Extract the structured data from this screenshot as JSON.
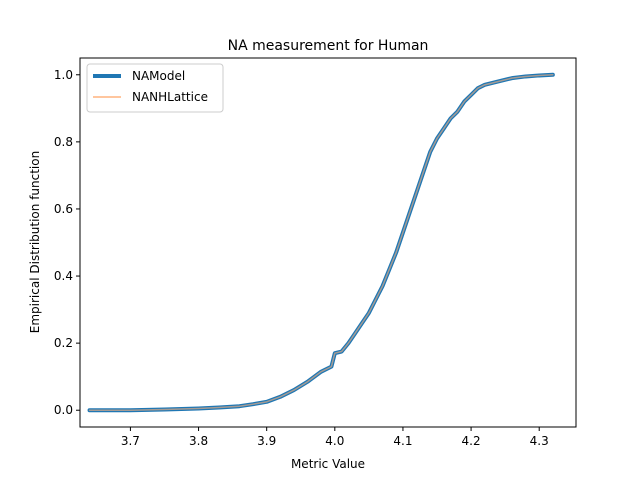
{
  "chart_data": {
    "type": "line",
    "title": "NA measurement for Human",
    "xlabel": "Metric Value",
    "ylabel": "Empirical Distribution function",
    "xlim": [
      3.626,
      4.354
    ],
    "ylim": [
      -0.05,
      1.05
    ],
    "x_ticks": [
      3.7,
      3.8,
      3.9,
      4.0,
      4.1,
      4.2,
      4.3
    ],
    "x_tick_labels": [
      "3.7",
      "3.8",
      "3.9",
      "4.0",
      "4.1",
      "4.2",
      "4.3"
    ],
    "y_ticks": [
      0.0,
      0.2,
      0.4,
      0.6,
      0.8,
      1.0
    ],
    "y_tick_labels": [
      "0.0",
      "0.2",
      "0.4",
      "0.6",
      "0.8",
      "1.0"
    ],
    "grid": false,
    "legend_position": "top-left",
    "series": [
      {
        "name": "NAModel",
        "color": "#1f77b4",
        "x": [
          3.64,
          3.7,
          3.75,
          3.8,
          3.83,
          3.86,
          3.88,
          3.9,
          3.92,
          3.94,
          3.96,
          3.98,
          3.995,
          4.0,
          4.01,
          4.02,
          4.03,
          4.04,
          4.05,
          4.06,
          4.07,
          4.08,
          4.09,
          4.1,
          4.11,
          4.12,
          4.13,
          4.14,
          4.15,
          4.16,
          4.17,
          4.18,
          4.19,
          4.2,
          4.21,
          4.22,
          4.24,
          4.26,
          4.28,
          4.3,
          4.32
        ],
        "y": [
          0.0,
          0.0,
          0.002,
          0.005,
          0.008,
          0.012,
          0.018,
          0.025,
          0.04,
          0.06,
          0.085,
          0.115,
          0.13,
          0.17,
          0.175,
          0.2,
          0.23,
          0.26,
          0.29,
          0.33,
          0.37,
          0.42,
          0.47,
          0.53,
          0.59,
          0.65,
          0.71,
          0.77,
          0.81,
          0.84,
          0.87,
          0.89,
          0.92,
          0.94,
          0.96,
          0.97,
          0.98,
          0.99,
          0.995,
          0.998,
          1.0
        ]
      },
      {
        "name": "NANHLattice",
        "color": "#ffb47e",
        "x": [
          3.64,
          3.7,
          3.75,
          3.8,
          3.83,
          3.86,
          3.88,
          3.9,
          3.92,
          3.94,
          3.96,
          3.98,
          3.995,
          4.0,
          4.01,
          4.02,
          4.03,
          4.04,
          4.05,
          4.06,
          4.07,
          4.08,
          4.09,
          4.1,
          4.11,
          4.12,
          4.13,
          4.14,
          4.15,
          4.16,
          4.17,
          4.18,
          4.19,
          4.2,
          4.21,
          4.22,
          4.24,
          4.26,
          4.28,
          4.3,
          4.32
        ],
        "y": [
          0.0,
          0.0,
          0.002,
          0.005,
          0.008,
          0.012,
          0.018,
          0.025,
          0.04,
          0.06,
          0.085,
          0.115,
          0.13,
          0.17,
          0.175,
          0.2,
          0.23,
          0.26,
          0.29,
          0.33,
          0.37,
          0.42,
          0.47,
          0.53,
          0.59,
          0.65,
          0.71,
          0.77,
          0.81,
          0.84,
          0.87,
          0.89,
          0.92,
          0.94,
          0.96,
          0.97,
          0.98,
          0.99,
          0.995,
          0.998,
          1.0
        ]
      }
    ]
  }
}
